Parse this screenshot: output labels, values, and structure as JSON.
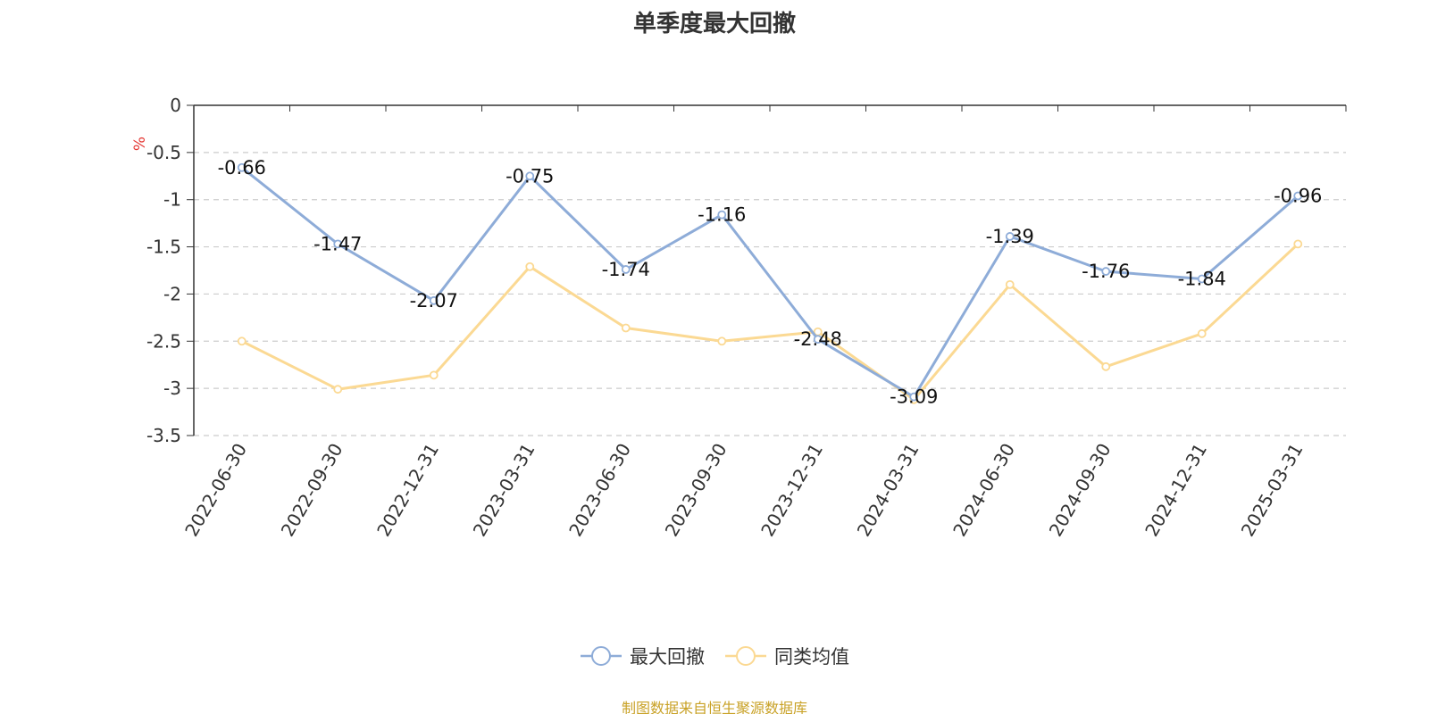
{
  "chart_data": {
    "type": "line",
    "title": "单季度最大回撤",
    "ylabel": "%",
    "xlabel": "",
    "ylim": [
      -3.5,
      0
    ],
    "yticks": [
      0,
      -0.5,
      -1,
      -1.5,
      -2,
      -2.5,
      -3,
      -3.5
    ],
    "categories": [
      "2022-06-30",
      "2022-09-30",
      "2022-12-31",
      "2023-03-31",
      "2023-06-30",
      "2023-09-30",
      "2023-12-31",
      "2024-03-31",
      "2024-06-30",
      "2024-09-30",
      "2024-12-31",
      "2025-03-31"
    ],
    "grid": "horizontal-dashed",
    "legend_position": "bottom",
    "series": [
      {
        "name": "最大回撤",
        "color": "#8eacd8",
        "values": [
          -0.66,
          -1.47,
          -2.07,
          -0.75,
          -1.74,
          -1.16,
          -2.48,
          -3.09,
          -1.39,
          -1.76,
          -1.84,
          -0.96
        ],
        "data_labels": [
          "-0.66",
          "-1.47",
          "-2.07",
          "-0.75",
          "-1.74",
          "-1.16",
          "-2.48",
          "-3.09",
          "-1.39",
          "-1.76",
          "-1.84",
          "-0.96"
        ]
      },
      {
        "name": "同类均值",
        "color": "#fbd993",
        "values": [
          -2.5,
          -3.01,
          -2.86,
          -1.71,
          -2.36,
          -2.5,
          -2.4,
          -3.12,
          -1.9,
          -2.77,
          -2.42,
          -1.47
        ]
      }
    ]
  },
  "source_note": "制图数据来自恒生聚源数据库"
}
